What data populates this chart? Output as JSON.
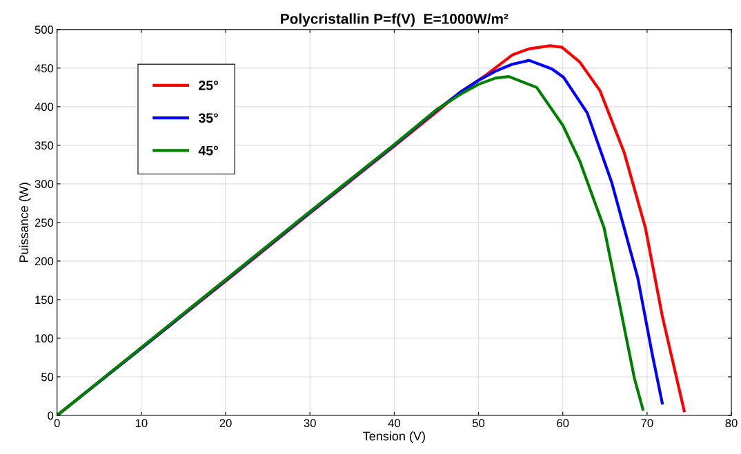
{
  "chart_data": {
    "type": "line",
    "title": "Polycristallin P=f(V)  E=1000W/m²",
    "xlabel": "Tension (V)",
    "ylabel": "Puissance (W)",
    "xlim": [
      0,
      80
    ],
    "xticks": [
      0,
      10,
      20,
      30,
      40,
      50,
      60,
      70,
      80
    ],
    "ylim": [
      0,
      500
    ],
    "yticks": [
      0,
      50,
      100,
      150,
      200,
      250,
      300,
      350,
      400,
      450,
      500
    ],
    "grid": true,
    "legend": "top left",
    "marker": "none",
    "line_style": "solid",
    "series": [
      {
        "name": "25°",
        "color": "#ff0000",
        "x": [
          0,
          10,
          20,
          30,
          40,
          45,
          48,
          50.9,
          54,
          56,
          58.5,
          59.9,
          62,
          64.4,
          67.3,
          69.8,
          71.8,
          74.4
        ],
        "values": [
          0,
          87,
          174,
          262,
          349,
          393,
          420,
          441,
          467,
          475,
          479,
          477,
          458,
          421,
          340,
          243,
          129,
          6
        ]
      },
      {
        "name": "35°",
        "color": "#0000ff",
        "x": [
          0,
          10,
          20,
          30,
          40,
          45,
          48,
          50,
          52,
          54,
          56,
          58.7,
          60.1,
          62.9,
          65.8,
          68.9,
          70.6,
          71.8
        ],
        "values": [
          0,
          87,
          175,
          263,
          350,
          395,
          420,
          434,
          446,
          455,
          460,
          449,
          438,
          392,
          302,
          178,
          80,
          16
        ]
      },
      {
        "name": "45°",
        "color": "#008000",
        "x": [
          0,
          10,
          20,
          30,
          40,
          45,
          48,
          50,
          52,
          53.6,
          56.9,
          60,
          62,
          64.9,
          66.7,
          68.5,
          69.5
        ],
        "values": [
          0,
          88,
          176,
          264,
          351,
          396,
          417,
          429,
          437,
          439,
          425,
          376,
          330,
          243,
          146,
          48,
          8
        ]
      }
    ]
  }
}
